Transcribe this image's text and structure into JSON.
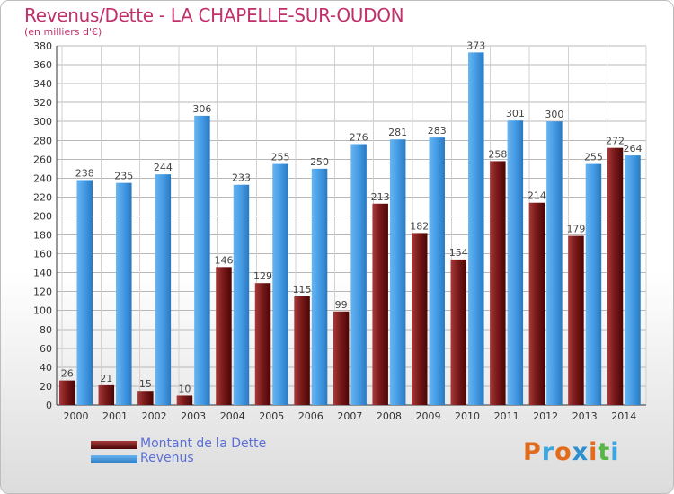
{
  "page": {
    "title": "Revenus/Dette - LA CHAPELLE-SUR-OUDON",
    "subtitle": "(en milliers d'€)",
    "brand": "Proxiti"
  },
  "colors": {
    "dette": "#7a1a1a",
    "revenus": "#3f97e0",
    "title": "#c0306a",
    "legend_text": "#5b6fd6",
    "grid": "#b8b8b8",
    "brand_letters": [
      "#e26c1b",
      "#3da6df",
      "#e26c1b",
      "#2b8fd0",
      "#e26c1b",
      "#58b548",
      "#3da6df"
    ]
  },
  "chart_data": {
    "type": "bar",
    "title": "Revenus/Dette - LA CHAPELLE-SUR-OUDON",
    "subtitle": "(en milliers d'€)",
    "xlabel": "",
    "ylabel": "",
    "ylim": [
      0,
      380
    ],
    "yticks": [
      0,
      20,
      40,
      60,
      80,
      100,
      120,
      140,
      160,
      180,
      200,
      220,
      240,
      260,
      280,
      300,
      320,
      340,
      360,
      380
    ],
    "grid": true,
    "legend_position": "bottom-left",
    "categories": [
      "2000",
      "2001",
      "2002",
      "2003",
      "2004",
      "2005",
      "2006",
      "2007",
      "2008",
      "2009",
      "2010",
      "2011",
      "2012",
      "2013",
      "2014"
    ],
    "series": [
      {
        "name": "Montant de la Dette",
        "values": [
          26,
          21,
          15,
          10,
          146,
          129,
          115,
          99,
          213,
          182,
          154,
          258,
          214,
          179,
          272
        ]
      },
      {
        "name": "Revenus",
        "values": [
          238,
          235,
          244,
          306,
          233,
          255,
          250,
          276,
          281,
          283,
          373,
          301,
          300,
          255,
          264
        ]
      }
    ]
  }
}
